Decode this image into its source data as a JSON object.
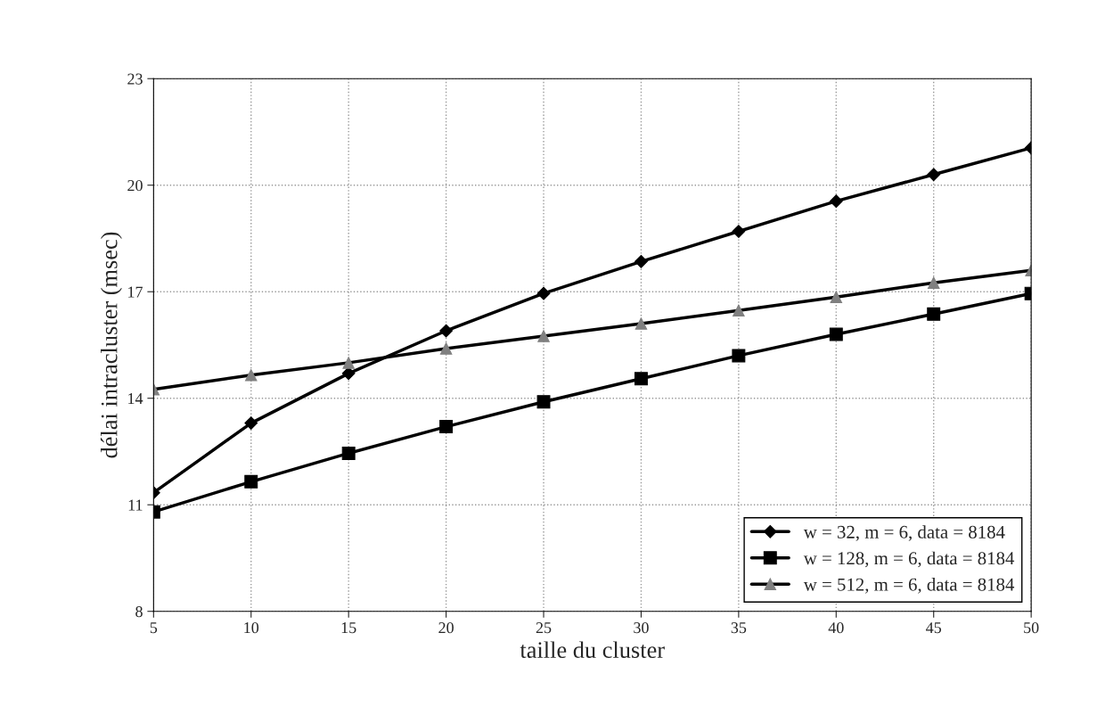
{
  "chart_data": {
    "type": "line",
    "xlabel": "taille du cluster",
    "ylabel": "délai intracluster (msec)",
    "x": [
      5,
      10,
      15,
      20,
      25,
      30,
      35,
      40,
      45,
      50
    ],
    "series": [
      {
        "name": "w = 32, m = 6, data = 8184",
        "color": "#000000",
        "marker": "diamond",
        "values": [
          11.34,
          13.3,
          14.7,
          15.9,
          16.95,
          17.85,
          18.7,
          19.55,
          20.3,
          21.05
        ]
      },
      {
        "name": "w = 128, m = 6, data = 8184",
        "color": "#000000",
        "marker": "square",
        "values": [
          10.8,
          11.65,
          12.45,
          13.2,
          13.9,
          14.55,
          15.2,
          15.8,
          16.37,
          16.95
        ]
      },
      {
        "name": "w = 512, m = 6, data = 8184",
        "color": "#808080",
        "marker": "triangle",
        "values": [
          14.25,
          14.65,
          15.0,
          15.4,
          15.75,
          16.1,
          16.47,
          16.85,
          17.25,
          17.6
        ]
      }
    ],
    "xlim": [
      5,
      50
    ],
    "xticks": [
      5,
      10,
      15,
      20,
      25,
      30,
      35,
      40,
      45,
      50
    ],
    "ylim": [
      8,
      23
    ],
    "yticks": [
      8,
      11,
      14,
      17,
      20,
      23
    ],
    "grid": true,
    "legend": "bottom right",
    "line_style": "solid"
  }
}
